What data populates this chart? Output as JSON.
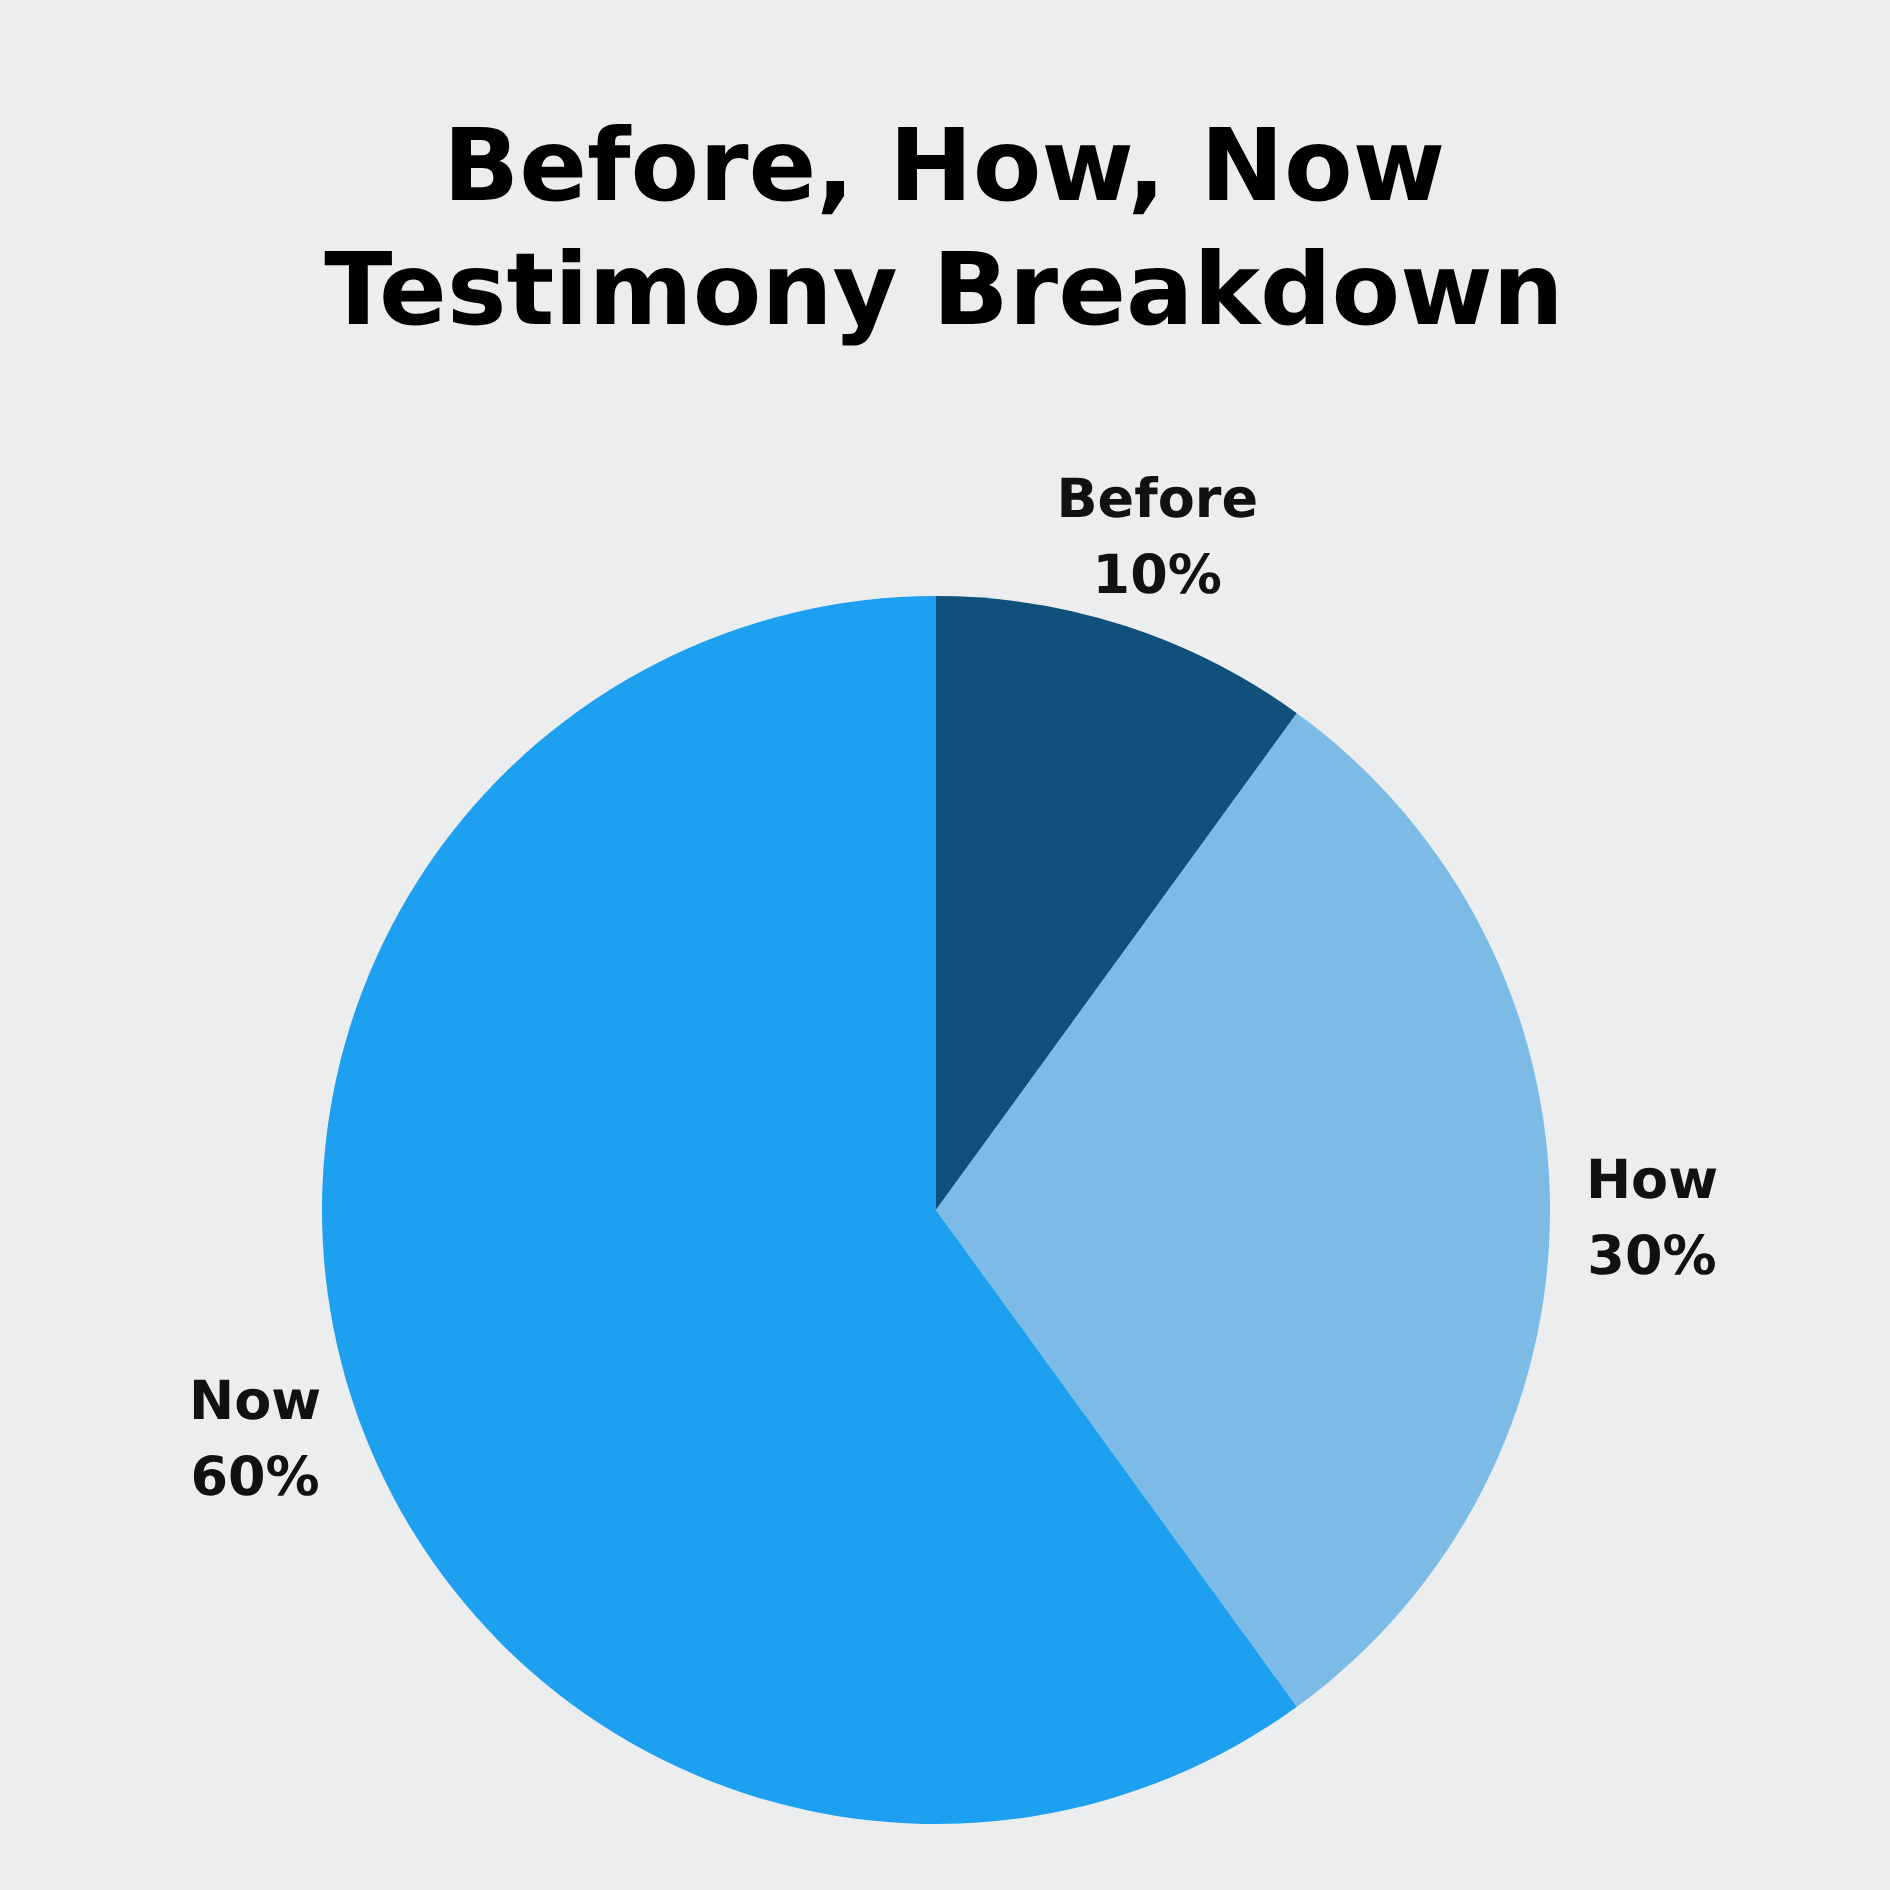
{
  "chart_data": {
    "type": "pie",
    "title": "Before, How, Now\nTestimony Breakdown",
    "categories": [
      "Before",
      "How",
      "Now"
    ],
    "values": [
      10,
      30,
      60
    ],
    "value_labels": [
      "10%",
      "30%",
      "60%"
    ],
    "colors": [
      "#10517b",
      "#7bbbe6",
      "#1ea0f0"
    ],
    "legend": false
  }
}
